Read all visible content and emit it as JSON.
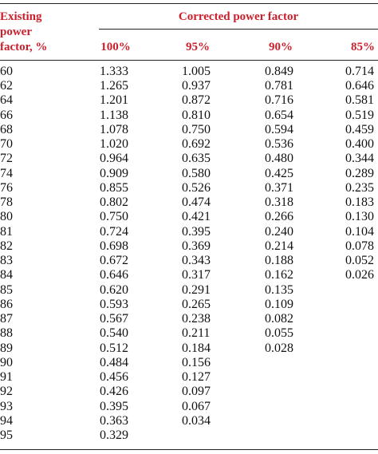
{
  "table": {
    "header": {
      "row_label": "Existing power factor, %",
      "group": "Corrected power factor",
      "columns": [
        "100%",
        "95%",
        "90%",
        "85%"
      ]
    },
    "rows": [
      [
        "60",
        "1.333",
        "1.005",
        "0.849",
        "0.714"
      ],
      [
        "62",
        "1.265",
        "0.937",
        "0.781",
        "0.646"
      ],
      [
        "64",
        "1.201",
        "0.872",
        "0.716",
        "0.581"
      ],
      [
        "66",
        "1.138",
        "0.810",
        "0.654",
        "0.519"
      ],
      [
        "68",
        "1.078",
        "0.750",
        "0.594",
        "0.459"
      ],
      [
        "70",
        "1.020",
        "0.692",
        "0.536",
        "0.400"
      ],
      [
        "72",
        "0.964",
        "0.635",
        "0.480",
        "0.344"
      ],
      [
        "74",
        "0.909",
        "0.580",
        "0.425",
        "0.289"
      ],
      [
        "76",
        "0.855",
        "0.526",
        "0.371",
        "0.235"
      ],
      [
        "78",
        "0.802",
        "0.474",
        "0.318",
        "0.183"
      ],
      [
        "80",
        "0.750",
        "0.421",
        "0.266",
        "0.130"
      ],
      [
        "81",
        "0.724",
        "0.395",
        "0.240",
        "0.104"
      ],
      [
        "82",
        "0.698",
        "0.369",
        "0.214",
        "0.078"
      ],
      [
        "83",
        "0.672",
        "0.343",
        "0.188",
        "0.052"
      ],
      [
        "84",
        "0.646",
        "0.317",
        "0.162",
        "0.026"
      ],
      [
        "85",
        "0.620",
        "0.291",
        "0.135"
      ],
      [
        "86",
        "0.593",
        "0.265",
        "0.109"
      ],
      [
        "87",
        "0.567",
        "0.238",
        "0.082"
      ],
      [
        "88",
        "0.540",
        "0.211",
        "0.055"
      ],
      [
        "89",
        "0.512",
        "0.184",
        "0.028"
      ],
      [
        "90",
        "0.484",
        "0.156"
      ],
      [
        "91",
        "0.456",
        "0.127"
      ],
      [
        "92",
        "0.426",
        "0.097"
      ],
      [
        "93",
        "0.395",
        "0.067"
      ],
      [
        "94",
        "0.363",
        "0.034"
      ],
      [
        "95",
        "0.329"
      ]
    ]
  }
}
